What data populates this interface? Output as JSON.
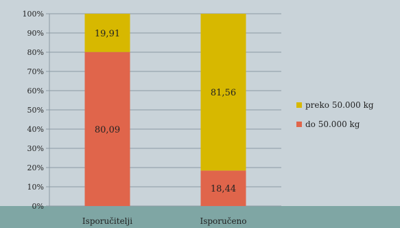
{
  "chart_data": {
    "type": "bar",
    "stacked": true,
    "percent_stacked": true,
    "categories": [
      "Isporučitelji",
      "Isporučeno"
    ],
    "series": [
      {
        "name": "do 50.000 kg",
        "values": [
          80.09,
          18.44
        ],
        "labels": [
          "80,09",
          "18,44"
        ],
        "color": "#e0654b"
      },
      {
        "name": "preko 50.000 kg",
        "values": [
          19.91,
          81.56
        ],
        "labels": [
          "19,91",
          "81,56"
        ],
        "color": "#d7b800"
      }
    ],
    "legend_order": [
      1,
      0
    ],
    "yticks": [
      "0%",
      "10%",
      "20%",
      "30%",
      "40%",
      "50%",
      "60%",
      "70%",
      "80%",
      "90%",
      "100%"
    ],
    "ylim": [
      0,
      100
    ],
    "grid": true,
    "legend": "right",
    "title": "",
    "xlabel": "",
    "ylabel": ""
  },
  "colors": {
    "background": "#c9d3d9",
    "floor": "#7fa6a4",
    "grid": "#8b9aa3"
  }
}
